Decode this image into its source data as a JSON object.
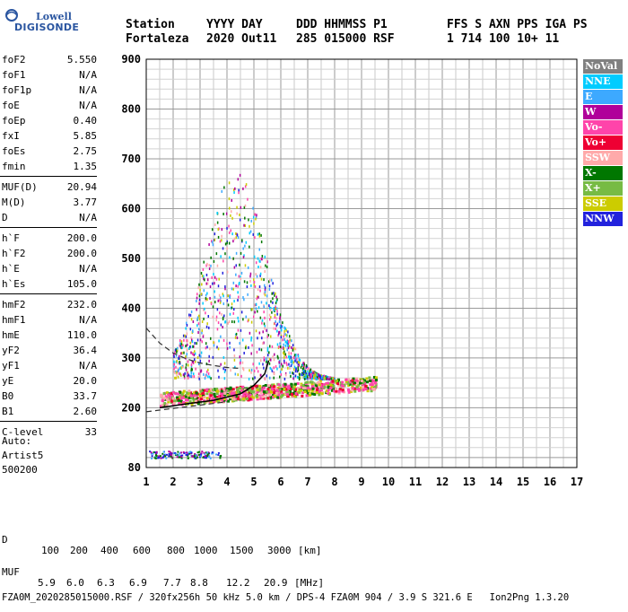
{
  "logo": {
    "line1": "Lowell",
    "line2": "DIGISONDE"
  },
  "header": {
    "labels": [
      "Station",
      "YYYY DAY",
      "DDD HHMMSS P1",
      "FFS S AXN PPS IGA PS"
    ],
    "values": [
      "Fortaleza",
      "2020 Out11",
      "285 015000 RSF",
      "1 714 100 10+ 11"
    ]
  },
  "params": [
    {
      "k": "foF2",
      "v": "5.550"
    },
    {
      "k": "foF1",
      "v": "N/A"
    },
    {
      "k": "foF1p",
      "v": "N/A"
    },
    {
      "k": "foE",
      "v": "N/A"
    },
    {
      "k": "foEp",
      "v": "0.40"
    },
    {
      "k": "fxI",
      "v": "5.85"
    },
    {
      "k": "foEs",
      "v": "2.75"
    },
    {
      "k": "fmin",
      "v": "1.35"
    },
    {
      "k": "MUF(D)",
      "v": "20.94"
    },
    {
      "k": "M(D)",
      "v": "3.77"
    },
    {
      "k": "D",
      "v": "N/A"
    },
    {
      "k": "h`F",
      "v": "200.0"
    },
    {
      "k": "h`F2",
      "v": "200.0"
    },
    {
      "k": "h`E",
      "v": "N/A"
    },
    {
      "k": "h`Es",
      "v": "105.0"
    },
    {
      "k": "hmF2",
      "v": "232.0"
    },
    {
      "k": "hmF1",
      "v": "N/A"
    },
    {
      "k": "hmE",
      "v": "110.0"
    },
    {
      "k": "yF2",
      "v": "36.4"
    },
    {
      "k": "yF1",
      "v": "N/A"
    },
    {
      "k": "yE",
      "v": "20.0"
    },
    {
      "k": "B0",
      "v": "33.7"
    },
    {
      "k": "B1",
      "v": "2.60"
    },
    {
      "k": "C-level",
      "v": "33"
    }
  ],
  "auto": [
    "Auto:",
    "Artist5",
    "500200"
  ],
  "legend": [
    {
      "label": "NoVal",
      "color": "#808080"
    },
    {
      "label": "NNE",
      "color": "#00ccff"
    },
    {
      "label": "E",
      "color": "#3da9ff"
    },
    {
      "label": "W",
      "color": "#b0009a"
    },
    {
      "label": "Vo-",
      "color": "#ff44aa"
    },
    {
      "label": "Vo+",
      "color": "#ee0033"
    },
    {
      "label": "SSW",
      "color": "#ffaaaa"
    },
    {
      "label": "X-",
      "color": "#007700"
    },
    {
      "label": "X+",
      "color": "#77bb44"
    },
    {
      "label": "SSE",
      "color": "#cccc00"
    },
    {
      "label": "NNW",
      "color": "#2222dd"
    }
  ],
  "footer": {
    "d_label": "D",
    "d_values": [
      "100",
      "200",
      "400",
      "600",
      "800",
      "1000",
      "1500",
      "3000",
      "[km]"
    ],
    "muf_label": "MUF",
    "muf_values": [
      "5.9",
      "6.0",
      "6.3",
      "6.9",
      "7.7",
      "8.8",
      "12.2",
      "20.9",
      "[MHz]"
    ],
    "file_line": "FZA0M_2020285015000.RSF / 320fx256h 50 kHz 5.0 km / DPS-4 FZA0M 904 / 3.9 S 321.6 E   Ion2Png 1.3.20"
  },
  "chart_data": {
    "type": "scatter",
    "xlim": [
      1,
      17
    ],
    "ylim": [
      80,
      900
    ],
    "x_ticks": [
      1,
      2,
      3,
      4,
      5,
      6,
      7,
      8,
      9,
      10,
      11,
      12,
      13,
      14,
      15,
      16,
      17
    ],
    "y_ticks": [
      80,
      200,
      300,
      400,
      500,
      600,
      700,
      800,
      900
    ],
    "grid": true,
    "trace_profile": {
      "x": [
        1.5,
        2.5,
        3.5,
        4.5,
        5.0,
        5.4,
        5.55
      ],
      "y": [
        200,
        208,
        215,
        228,
        245,
        268,
        295
      ]
    },
    "trace_extrapolated": {
      "x": [
        1.0,
        1.5,
        2.0,
        2.5,
        3.0,
        3.5,
        4.0,
        4.5
      ],
      "y": [
        360,
        330,
        310,
        298,
        290,
        285,
        281,
        279
      ]
    },
    "es_layer": {
      "x": [
        1.1,
        3.8
      ],
      "y": 105
    },
    "f_layer_band": {
      "x": [
        1.5,
        9.5
      ],
      "y": [
        205,
        260
      ]
    },
    "spread_region": {
      "x": [
        2.0,
        8.0
      ],
      "y": [
        260,
        680
      ]
    }
  }
}
